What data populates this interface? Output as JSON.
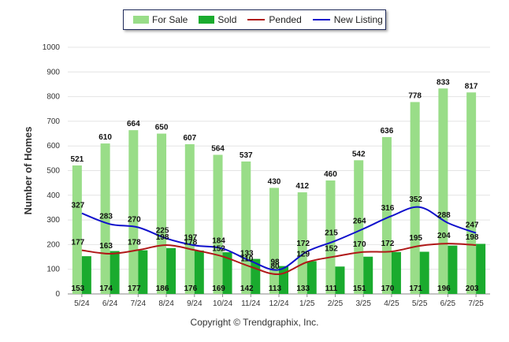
{
  "chart_data": {
    "type": "bar",
    "ylabel": "Number of Homes",
    "xlabel": "",
    "ylim": [
      0,
      1000
    ],
    "yticks": [
      0,
      100,
      200,
      300,
      400,
      500,
      600,
      700,
      800,
      900,
      1000
    ],
    "grid": true,
    "legend_position": "top-center",
    "categories": [
      "5/24",
      "6/24",
      "7/24",
      "8/24",
      "9/24",
      "10/24",
      "11/24",
      "12/24",
      "1/25",
      "2/25",
      "3/25",
      "4/25",
      "5/25",
      "6/25",
      "7/25"
    ],
    "series": [
      {
        "name": "For Sale",
        "kind": "bar",
        "color": "#99dd88",
        "values": [
          521,
          610,
          664,
          650,
          607,
          564,
          537,
          430,
          412,
          460,
          542,
          636,
          778,
          833,
          817
        ]
      },
      {
        "name": "Sold",
        "kind": "bar",
        "color": "#1aab2e",
        "values": [
          153,
          174,
          177,
          186,
          176,
          169,
          142,
          113,
          133,
          111,
          151,
          170,
          171,
          196,
          203
        ]
      },
      {
        "name": "Pended",
        "kind": "line",
        "color": "#b01818",
        "values": [
          177,
          163,
          178,
          198,
          178,
          152,
          110,
          80,
          129,
          152,
          170,
          172,
          195,
          204,
          198
        ]
      },
      {
        "name": "New Listing",
        "kind": "line",
        "color": "#1010cc",
        "values": [
          327,
          283,
          270,
          225,
          197,
          184,
          133,
          98,
          172,
          215,
          264,
          316,
          352,
          288,
          247
        ]
      }
    ]
  },
  "footer": {
    "copyright": "Copyright © Trendgraphix, Inc."
  }
}
